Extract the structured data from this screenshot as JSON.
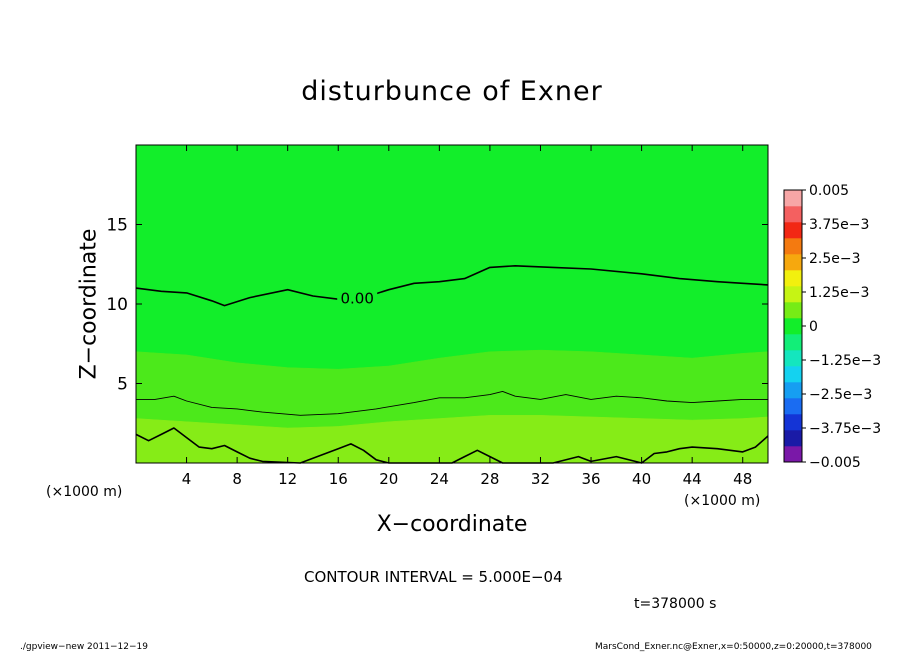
{
  "chart_data": {
    "type": "heatmap",
    "title": "disturbunce of Exner",
    "xlabel": "X−coordinate",
    "ylabel": "Z−coordinate",
    "x_unit": "(×1000 m)",
    "z_unit": "(×1000 m)",
    "xlim": [
      0,
      50
    ],
    "ylim": [
      0,
      20
    ],
    "x_ticks": [
      4,
      8,
      12,
      16,
      20,
      24,
      28,
      32,
      36,
      40,
      44,
      48
    ],
    "x_tick_labels": [
      "4",
      "8",
      "12",
      "16",
      "20",
      "24",
      "28",
      "32",
      "36",
      "40",
      "44",
      "48"
    ],
    "y_ticks": [
      5,
      10,
      15
    ],
    "y_tick_labels": [
      "5",
      "10",
      "15"
    ],
    "contour_label": "0.00",
    "contour_interval_text": "CONTOUR INTERVAL = 5.000E−04",
    "time_text": "t=378000 s",
    "colorbar": {
      "levels": [
        -0.005,
        -0.004375,
        -0.00375,
        -0.003125,
        -0.0025,
        -0.001875,
        -0.00125,
        -0.000625,
        0,
        0.000625,
        0.00125,
        0.001875,
        0.0025,
        0.003125,
        0.00375,
        0.004375,
        0.005
      ],
      "colors": [
        "#7a18a8",
        "#1a1aa6",
        "#1434d6",
        "#1a6cf2",
        "#169ef2",
        "#14d2f0",
        "#14e6be",
        "#12ee78",
        "#12ee2a",
        "#76ec16",
        "#c6f414",
        "#f2f00e",
        "#f6a80e",
        "#f47a10",
        "#f22814",
        "#f46060",
        "#f7a6a6"
      ],
      "tick_values": [
        0.005,
        0.00375,
        0.0025,
        0.00125,
        0,
        -0.00125,
        -0.0025,
        -0.00375,
        -0.005
      ],
      "tick_labels": [
        "0.005",
        "3.75e−3",
        "2.5e−3",
        "1.25e−3",
        "0",
        "−1.25e−3",
        "−2.5e−3",
        "−3.75e−3",
        "−0.005"
      ]
    },
    "bands": [
      {
        "min": 0.0,
        "max": 0.000625,
        "color": "#12ee2a",
        "top": [
          [
            0,
            11.0
          ],
          [
            2,
            10.8
          ],
          [
            4,
            10.7
          ],
          [
            6,
            10.2
          ],
          [
            7,
            9.9
          ],
          [
            9,
            10.4
          ],
          [
            12,
            10.9
          ],
          [
            14,
            10.5
          ],
          [
            16,
            10.3
          ],
          [
            18,
            10.4
          ],
          [
            20,
            10.9
          ],
          [
            22,
            11.3
          ],
          [
            24,
            11.4
          ],
          [
            26,
            11.6
          ],
          [
            28,
            12.3
          ],
          [
            30,
            12.4
          ],
          [
            33,
            12.3
          ],
          [
            36,
            12.2
          ],
          [
            40,
            11.9
          ],
          [
            43,
            11.6
          ],
          [
            46,
            11.4
          ],
          [
            48,
            11.3
          ],
          [
            50,
            11.2
          ]
        ],
        "bottom": [
          [
            0,
            7.0
          ],
          [
            4,
            6.8
          ],
          [
            8,
            6.3
          ],
          [
            12,
            6.0
          ],
          [
            16,
            5.9
          ],
          [
            20,
            6.1
          ],
          [
            24,
            6.6
          ],
          [
            28,
            7.0
          ],
          [
            32,
            7.1
          ],
          [
            36,
            7.0
          ],
          [
            40,
            6.8
          ],
          [
            44,
            6.6
          ],
          [
            48,
            6.9
          ],
          [
            50,
            7.0
          ]
        ]
      },
      {
        "min": 0.000625,
        "max": 0.00125,
        "color": "#4ce91b",
        "top": [
          [
            0,
            7.0
          ],
          [
            4,
            6.8
          ],
          [
            8,
            6.3
          ],
          [
            12,
            6.0
          ],
          [
            16,
            5.9
          ],
          [
            20,
            6.1
          ],
          [
            24,
            6.6
          ],
          [
            28,
            7.0
          ],
          [
            32,
            7.1
          ],
          [
            36,
            7.0
          ],
          [
            40,
            6.8
          ],
          [
            44,
            6.6
          ],
          [
            48,
            6.9
          ],
          [
            50,
            7.0
          ]
        ],
        "bottom": [
          [
            0,
            2.8
          ],
          [
            4,
            2.6
          ],
          [
            8,
            2.4
          ],
          [
            12,
            2.2
          ],
          [
            16,
            2.3
          ],
          [
            20,
            2.6
          ],
          [
            24,
            2.8
          ],
          [
            28,
            3.0
          ],
          [
            32,
            3.0
          ],
          [
            36,
            2.9
          ],
          [
            40,
            2.8
          ],
          [
            44,
            2.7
          ],
          [
            48,
            2.8
          ],
          [
            50,
            2.9
          ]
        ]
      },
      {
        "min": 0.00125,
        "max": 0.001875,
        "color": "#86ec17",
        "top": [
          [
            0,
            2.8
          ],
          [
            4,
            2.6
          ],
          [
            8,
            2.4
          ],
          [
            12,
            2.2
          ],
          [
            16,
            2.3
          ],
          [
            20,
            2.6
          ],
          [
            24,
            2.8
          ],
          [
            28,
            3.0
          ],
          [
            32,
            3.0
          ],
          [
            36,
            2.9
          ],
          [
            40,
            2.8
          ],
          [
            44,
            2.7
          ],
          [
            48,
            2.8
          ],
          [
            50,
            2.9
          ]
        ],
        "bottom": [
          [
            0,
            0
          ],
          [
            50,
            0
          ]
        ]
      }
    ],
    "contours": [
      {
        "value": 0.0,
        "labeled": true,
        "weight": "heavy",
        "points": [
          [
            0,
            11.0
          ],
          [
            2,
            10.8
          ],
          [
            4,
            10.7
          ],
          [
            6,
            10.2
          ],
          [
            7,
            9.9
          ],
          [
            9,
            10.4
          ],
          [
            12,
            10.9
          ],
          [
            14,
            10.5
          ],
          [
            16,
            10.3
          ],
          [
            18,
            10.4
          ],
          [
            20,
            10.9
          ],
          [
            22,
            11.3
          ],
          [
            24,
            11.4
          ],
          [
            26,
            11.6
          ],
          [
            28,
            12.3
          ],
          [
            30,
            12.4
          ],
          [
            33,
            12.3
          ],
          [
            36,
            12.2
          ],
          [
            40,
            11.9
          ],
          [
            43,
            11.6
          ],
          [
            46,
            11.4
          ],
          [
            48,
            11.3
          ],
          [
            50,
            11.2
          ]
        ]
      },
      {
        "value": 0.0005,
        "labeled": false,
        "weight": "thin",
        "points": [
          [
            0,
            4.0
          ],
          [
            1.5,
            4.0
          ],
          [
            3,
            4.2
          ],
          [
            4,
            3.9
          ],
          [
            6,
            3.5
          ],
          [
            8,
            3.4
          ],
          [
            10,
            3.2
          ],
          [
            13,
            3.0
          ],
          [
            16,
            3.1
          ],
          [
            19,
            3.4
          ],
          [
            22,
            3.8
          ],
          [
            24,
            4.1
          ],
          [
            26,
            4.1
          ],
          [
            28,
            4.3
          ],
          [
            29,
            4.5
          ],
          [
            30,
            4.2
          ],
          [
            32,
            4.0
          ],
          [
            34,
            4.3
          ],
          [
            36,
            4.0
          ],
          [
            38,
            4.2
          ],
          [
            40,
            4.1
          ],
          [
            42,
            3.9
          ],
          [
            44,
            3.8
          ],
          [
            46,
            3.9
          ],
          [
            48,
            4.0
          ],
          [
            50,
            4.0
          ]
        ]
      },
      {
        "value": 0.001,
        "labeled": false,
        "weight": "heavy",
        "points": [
          [
            0,
            1.8
          ],
          [
            1,
            1.4
          ],
          [
            2,
            1.8
          ],
          [
            3,
            2.2
          ],
          [
            4,
            1.6
          ],
          [
            5,
            1.0
          ],
          [
            6,
            0.9
          ],
          [
            7,
            1.1
          ],
          [
            8,
            0.7
          ],
          [
            9,
            0.3
          ],
          [
            10,
            0.1
          ],
          [
            13,
            0.0
          ],
          [
            16,
            0.9
          ],
          [
            17,
            1.2
          ],
          [
            18,
            0.8
          ],
          [
            19,
            0.2
          ],
          [
            20,
            0.0
          ],
          [
            25,
            0.0
          ],
          [
            26,
            0.4
          ],
          [
            27,
            0.8
          ],
          [
            28,
            0.4
          ],
          [
            29,
            0.0
          ],
          [
            33,
            0.0
          ],
          [
            35,
            0.4
          ],
          [
            36,
            0.1
          ],
          [
            38,
            0.4
          ],
          [
            40,
            0.0
          ],
          [
            41,
            0.6
          ],
          [
            42,
            0.7
          ],
          [
            43,
            0.9
          ],
          [
            44,
            1.0
          ],
          [
            46,
            0.9
          ],
          [
            47,
            0.8
          ],
          [
            48,
            0.7
          ],
          [
            49,
            1.0
          ],
          [
            50,
            1.7
          ]
        ]
      }
    ]
  },
  "footer": {
    "left": "./gpview−new   2011−12−19",
    "right": "MarsCond_Exner.nc@Exner,x=0:50000,z=0:20000,t=378000"
  }
}
